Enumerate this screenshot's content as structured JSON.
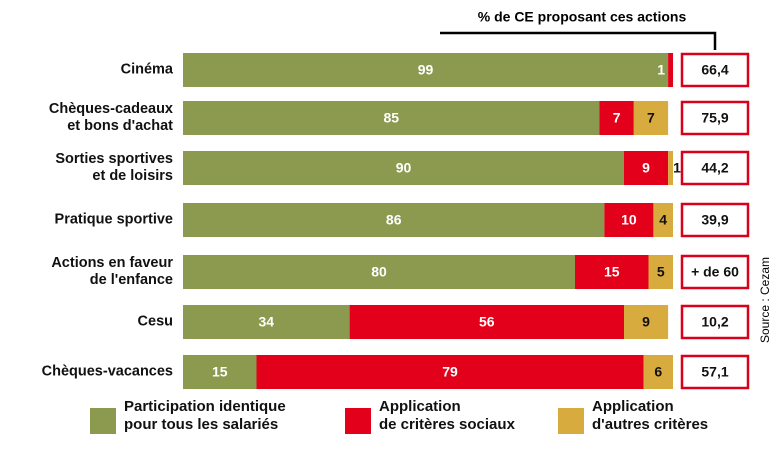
{
  "chart_data": {
    "type": "bar",
    "orientation": "horizontal",
    "stacked": true,
    "categories": [
      "Cinéma",
      "Chèques-cadeaux\net bons d'achat",
      "Sorties sportives\net de loisirs",
      "Pratique sportive",
      "Actions en faveur\nde l'enfance",
      "Cesu",
      "Chèques-vacances"
    ],
    "xlim": [
      0,
      100
    ],
    "series": [
      {
        "name": "Participation identique\npour tous les salariés",
        "color": "#8b9a4f",
        "values": [
          99,
          85,
          90,
          86,
          80,
          34,
          15
        ]
      },
      {
        "name": "Application\nde critères sociaux",
        "color": "#e2001a",
        "values": [
          1,
          7,
          9,
          10,
          15,
          56,
          79
        ]
      },
      {
        "name": "Application\nd'autres critères",
        "color": "#d8ab3e",
        "values": [
          0,
          7,
          1,
          4,
          5,
          9,
          6
        ]
      }
    ],
    "ce_share": {
      "title": "% de CE proposant ces actions",
      "values": [
        66.4,
        75.9,
        44.2,
        39.9,
        60,
        10.2,
        57.1
      ],
      "value_labels": [
        "66,4",
        "75,9",
        "44,2",
        "39,9",
        "+ de 60",
        "10,2",
        "57,1"
      ]
    },
    "source": "Source : Cezam"
  }
}
